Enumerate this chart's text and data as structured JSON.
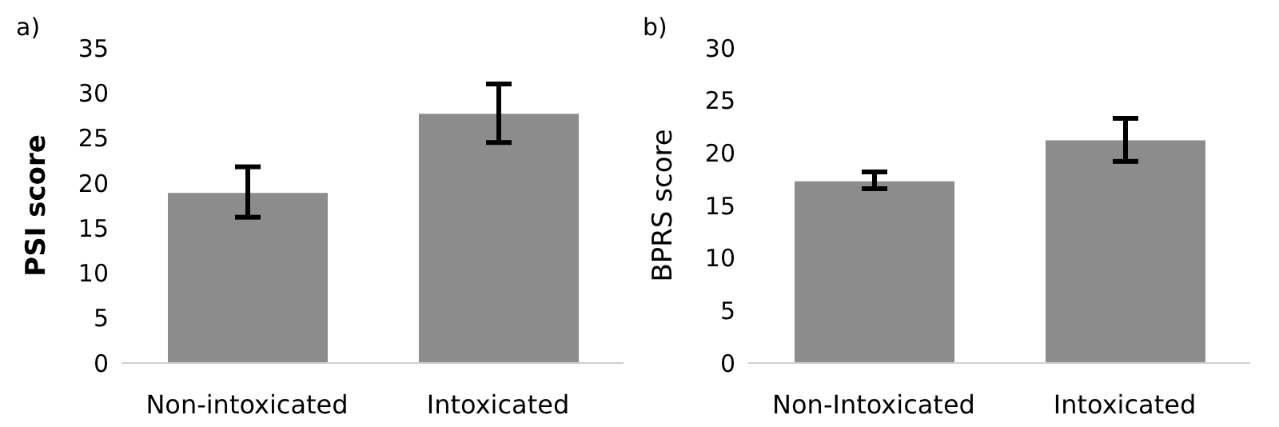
{
  "chart_data": [
    {
      "type": "bar",
      "title": "a)",
      "ylabel": "PSI score",
      "categories": [
        "Non-intoxicated",
        "Intoxicated"
      ],
      "values": [
        18.9,
        27.7
      ],
      "errors": [
        [
          16.2,
          21.8
        ],
        [
          24.5,
          31.0
        ]
      ],
      "color": "#8c8c8c",
      "ylim": [
        0,
        35
      ],
      "yticks": [
        0,
        5,
        10,
        15,
        20,
        25,
        30,
        35
      ],
      "grid": false,
      "legend": false
    },
    {
      "type": "bar",
      "title": "b)",
      "ylabel": "BPRS score",
      "categories": [
        "Non-Intoxicated",
        "Intoxicated"
      ],
      "values": [
        17.3,
        21.2
      ],
      "errors": [
        [
          16.6,
          18.2
        ],
        [
          19.2,
          23.3
        ]
      ],
      "color": "#8c8c8c",
      "ylim": [
        0,
        30
      ],
      "yticks": [
        0,
        5,
        10,
        15,
        20,
        25,
        30
      ],
      "grid": false,
      "legend": false
    }
  ]
}
